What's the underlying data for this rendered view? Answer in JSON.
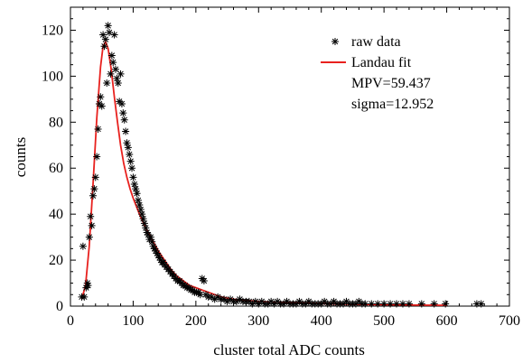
{
  "chart_data": {
    "type": "scatter",
    "xlabel": "cluster total ADC counts",
    "ylabel": "counts",
    "xlim": [
      0,
      700
    ],
    "ylim": [
      0,
      130
    ],
    "x_ticks": [
      0,
      100,
      200,
      300,
      400,
      500,
      600,
      700
    ],
    "y_ticks": [
      0,
      20,
      40,
      60,
      80,
      100,
      120
    ],
    "grid": false,
    "legend_position": "top-right",
    "series": [
      {
        "name": "raw data",
        "kind": "points",
        "marker": "asterisk",
        "color": "#000000",
        "points": [
          [
            18,
            4
          ],
          [
            20,
            26
          ],
          [
            22,
            4
          ],
          [
            25,
            8
          ],
          [
            27,
            10
          ],
          [
            28,
            9
          ],
          [
            30,
            30
          ],
          [
            32,
            39
          ],
          [
            34,
            35
          ],
          [
            36,
            48
          ],
          [
            38,
            51
          ],
          [
            40,
            56
          ],
          [
            42,
            65
          ],
          [
            44,
            77
          ],
          [
            46,
            88
          ],
          [
            48,
            91
          ],
          [
            50,
            87
          ],
          [
            52,
            118
          ],
          [
            54,
            113
          ],
          [
            56,
            116
          ],
          [
            58,
            97
          ],
          [
            60,
            122
          ],
          [
            62,
            119
          ],
          [
            64,
            101
          ],
          [
            66,
            109
          ],
          [
            68,
            106
          ],
          [
            70,
            118
          ],
          [
            72,
            103
          ],
          [
            74,
            99
          ],
          [
            76,
            97
          ],
          [
            78,
            89
          ],
          [
            80,
            101
          ],
          [
            82,
            88
          ],
          [
            84,
            84
          ],
          [
            86,
            81
          ],
          [
            88,
            76
          ],
          [
            90,
            71
          ],
          [
            92,
            69
          ],
          [
            94,
            66
          ],
          [
            96,
            63
          ],
          [
            98,
            60
          ],
          [
            100,
            56
          ],
          [
            102,
            53
          ],
          [
            104,
            51
          ],
          [
            106,
            49
          ],
          [
            108,
            46
          ],
          [
            110,
            44
          ],
          [
            112,
            42
          ],
          [
            114,
            40
          ],
          [
            116,
            38
          ],
          [
            118,
            36
          ],
          [
            120,
            34
          ],
          [
            122,
            32
          ],
          [
            124,
            31
          ],
          [
            126,
            29
          ],
          [
            128,
            30
          ],
          [
            130,
            28
          ],
          [
            132,
            26
          ],
          [
            134,
            25
          ],
          [
            136,
            24
          ],
          [
            138,
            23
          ],
          [
            140,
            22
          ],
          [
            142,
            21
          ],
          [
            144,
            20
          ],
          [
            146,
            19
          ],
          [
            148,
            19
          ],
          [
            150,
            18
          ],
          [
            153,
            17
          ],
          [
            156,
            16
          ],
          [
            159,
            15
          ],
          [
            162,
            14
          ],
          [
            165,
            13
          ],
          [
            168,
            12
          ],
          [
            171,
            11
          ],
          [
            174,
            11
          ],
          [
            177,
            10
          ],
          [
            180,
            9
          ],
          [
            183,
            9
          ],
          [
            186,
            8
          ],
          [
            189,
            8
          ],
          [
            192,
            7
          ],
          [
            195,
            7
          ],
          [
            198,
            6
          ],
          [
            201,
            6
          ],
          [
            204,
            6
          ],
          [
            207,
            5
          ],
          [
            210,
            12
          ],
          [
            213,
            11
          ],
          [
            216,
            5
          ],
          [
            220,
            4
          ],
          [
            225,
            4
          ],
          [
            230,
            3
          ],
          [
            235,
            4
          ],
          [
            240,
            3
          ],
          [
            245,
            3
          ],
          [
            250,
            2
          ],
          [
            255,
            3
          ],
          [
            260,
            2
          ],
          [
            265,
            2
          ],
          [
            270,
            3
          ],
          [
            275,
            2
          ],
          [
            280,
            2
          ],
          [
            285,
            2
          ],
          [
            290,
            1
          ],
          [
            295,
            2
          ],
          [
            300,
            1
          ],
          [
            305,
            2
          ],
          [
            310,
            1
          ],
          [
            315,
            1
          ],
          [
            320,
            2
          ],
          [
            325,
            1
          ],
          [
            330,
            2
          ],
          [
            335,
            1
          ],
          [
            340,
            1
          ],
          [
            345,
            2
          ],
          [
            350,
            1
          ],
          [
            355,
            1
          ],
          [
            360,
            1
          ],
          [
            365,
            2
          ],
          [
            370,
            1
          ],
          [
            375,
            1
          ],
          [
            380,
            2
          ],
          [
            385,
            1
          ],
          [
            390,
            1
          ],
          [
            395,
            1
          ],
          [
            400,
            1
          ],
          [
            405,
            2
          ],
          [
            410,
            1
          ],
          [
            415,
            1
          ],
          [
            420,
            2
          ],
          [
            425,
            1
          ],
          [
            430,
            1
          ],
          [
            435,
            1
          ],
          [
            440,
            2
          ],
          [
            445,
            1
          ],
          [
            450,
            1
          ],
          [
            455,
            1
          ],
          [
            460,
            2
          ],
          [
            465,
            1
          ],
          [
            470,
            1
          ],
          [
            480,
            1
          ],
          [
            490,
            1
          ],
          [
            500,
            1
          ],
          [
            510,
            1
          ],
          [
            520,
            1
          ],
          [
            530,
            1
          ],
          [
            540,
            1
          ],
          [
            560,
            1
          ],
          [
            580,
            1
          ],
          [
            598,
            1
          ],
          [
            648,
            1
          ],
          [
            655,
            1
          ]
        ]
      },
      {
        "name": "Landau fit",
        "kind": "line",
        "color": "#e8211e",
        "points": [
          [
            18,
            3
          ],
          [
            24,
            9
          ],
          [
            30,
            26
          ],
          [
            36,
            53
          ],
          [
            42,
            82
          ],
          [
            48,
            104
          ],
          [
            52,
            113
          ],
          [
            56,
            115
          ],
          [
            60,
            112
          ],
          [
            65,
            103
          ],
          [
            70,
            91
          ],
          [
            75,
            80
          ],
          [
            80,
            70
          ],
          [
            85,
            62
          ],
          [
            90,
            56
          ],
          [
            95,
            51
          ],
          [
            100,
            47
          ],
          [
            110,
            40
          ],
          [
            120,
            34
          ],
          [
            130,
            29
          ],
          [
            140,
            24
          ],
          [
            150,
            20
          ],
          [
            160,
            16
          ],
          [
            170,
            13
          ],
          [
            180,
            11
          ],
          [
            190,
            9
          ],
          [
            200,
            8
          ],
          [
            210,
            7
          ],
          [
            220,
            6
          ],
          [
            240,
            4
          ],
          [
            260,
            3
          ],
          [
            280,
            2.5
          ],
          [
            300,
            2
          ],
          [
            350,
            1.5
          ],
          [
            400,
            1.1
          ],
          [
            450,
            0.8
          ],
          [
            500,
            0.6
          ],
          [
            550,
            0.45
          ],
          [
            600,
            0.35
          ]
        ]
      }
    ],
    "annotations": [
      "MPV=59.437",
      "sigma=12.952"
    ]
  }
}
